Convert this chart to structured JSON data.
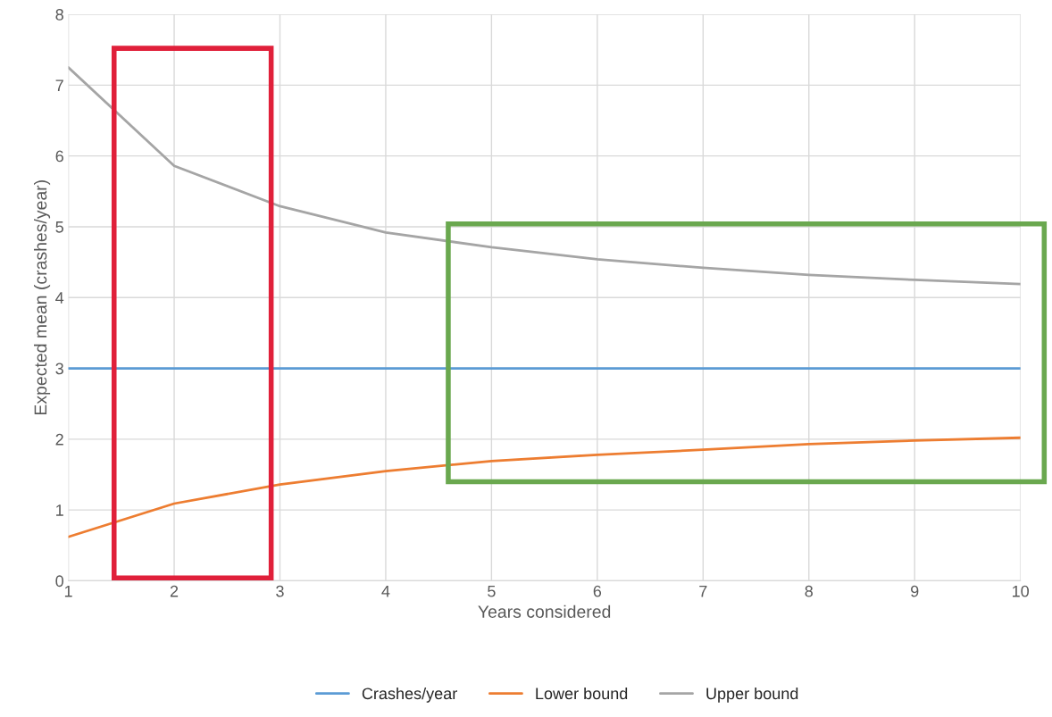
{
  "chart_data": {
    "type": "line",
    "xlabel": "Years considered",
    "ylabel": "Expected mean (crashes/year)",
    "x": [
      1,
      2,
      3,
      4,
      5,
      6,
      7,
      8,
      9,
      10
    ],
    "series": [
      {
        "name": "Crashes/year",
        "color": "#5b9bd5",
        "values": [
          3,
          3,
          3,
          3,
          3,
          3,
          3,
          3,
          3,
          3
        ]
      },
      {
        "name": "Lower bound",
        "color": "#ed7d31",
        "values": [
          0.62,
          1.09,
          1.36,
          1.55,
          1.69,
          1.78,
          1.85,
          1.93,
          1.98,
          2.02
        ]
      },
      {
        "name": "Upper bound",
        "color": "#a5a5a5",
        "values": [
          7.25,
          5.86,
          5.29,
          4.92,
          4.71,
          4.54,
          4.42,
          4.32,
          4.25,
          4.19
        ]
      }
    ],
    "xlim": [
      1,
      10
    ],
    "xticks": [
      1,
      2,
      3,
      4,
      5,
      6,
      7,
      8,
      9,
      10
    ],
    "ylim": [
      0,
      8
    ],
    "yticks": [
      0,
      1,
      2,
      3,
      4,
      5,
      6,
      7,
      8
    ],
    "grid": true,
    "legend": "bottom",
    "marker": "none",
    "line_style": "solid"
  }
}
